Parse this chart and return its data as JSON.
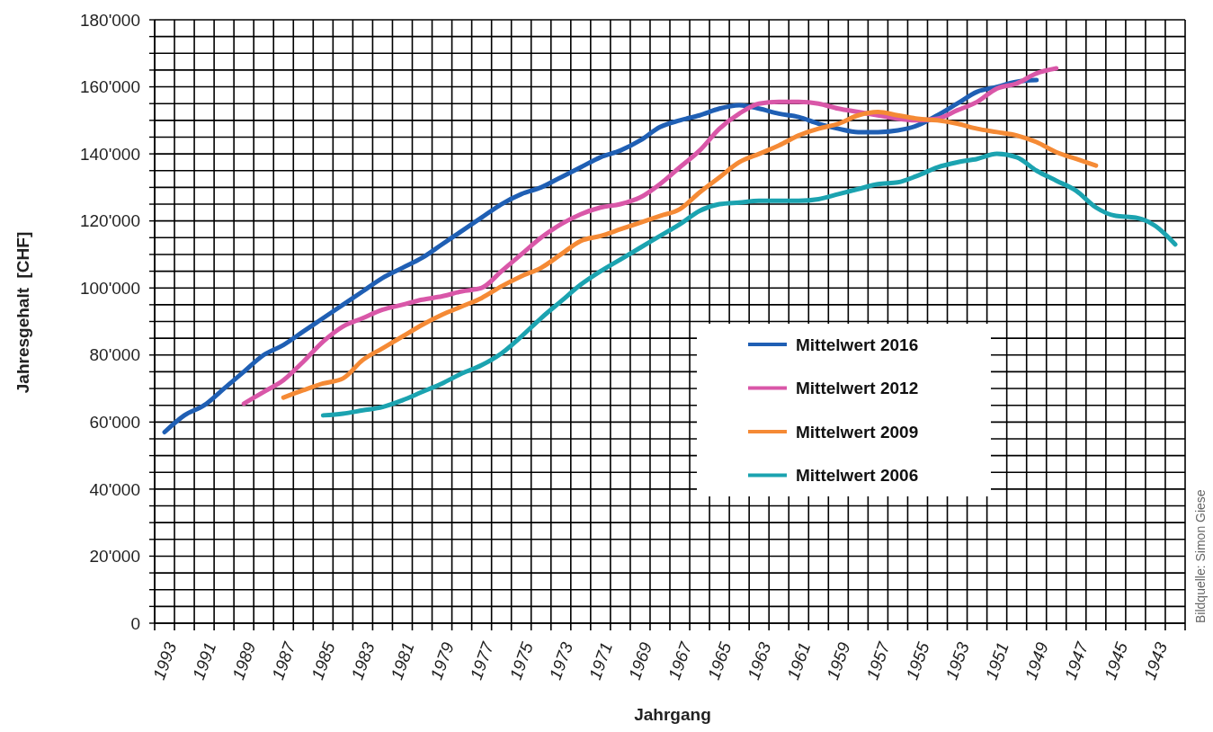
{
  "chart_data": {
    "type": "line",
    "xlabel": "Jahrgang",
    "ylabel": "Jahresgehalt  [CHF]",
    "annotations": [
      "Bildquelle: Simon Giese"
    ],
    "grid": true,
    "legend": "right",
    "line_style": "solid",
    "marker": "none",
    "categories": [
      "1993",
      null,
      "1991",
      null,
      "1989",
      null,
      "1987",
      null,
      "1985",
      null,
      "1983",
      null,
      "1981",
      null,
      "1979",
      null,
      "1977",
      null,
      "1975",
      null,
      "1973",
      null,
      "1971",
      null,
      "1969",
      null,
      "1967",
      null,
      "1965",
      null,
      "1963",
      null,
      "1961",
      null,
      "1959",
      null,
      "1957",
      null,
      "1955",
      null,
      "1953",
      null,
      "1951",
      null,
      "1949",
      null,
      "1947",
      null,
      "1945",
      null,
      "1943",
      null
    ],
    "ylim": [
      0,
      180000
    ],
    "yticks": [
      0,
      {
        "value": 5000,
        "label": null
      },
      {
        "value": 10000,
        "label": null
      },
      {
        "value": 15000,
        "label": null
      },
      {
        "value": 20000,
        "label": "20'000"
      },
      {
        "value": 25000,
        "label": null
      },
      {
        "value": 30000,
        "label": null
      },
      {
        "value": 35000,
        "label": null
      },
      {
        "value": 40000,
        "label": "40'000"
      },
      {
        "value": 45000,
        "label": null
      },
      {
        "value": 50000,
        "label": null
      },
      {
        "value": 55000,
        "label": null
      },
      {
        "value": 60000,
        "label": "60'000"
      },
      {
        "value": 65000,
        "label": null
      },
      {
        "value": 70000,
        "label": null
      },
      {
        "value": 75000,
        "label": null
      },
      {
        "value": 80000,
        "label": "80'000"
      },
      {
        "value": 85000,
        "label": null
      },
      {
        "value": 90000,
        "label": null
      },
      {
        "value": 95000,
        "label": null
      },
      {
        "value": 100000,
        "label": "100'000"
      },
      {
        "value": 105000,
        "label": null
      },
      {
        "value": 110000,
        "label": null
      },
      {
        "value": 115000,
        "label": null
      },
      {
        "value": 120000,
        "label": "120'000"
      },
      {
        "value": 125000,
        "label": null
      },
      {
        "value": 130000,
        "label": null
      },
      {
        "value": 135000,
        "label": null
      },
      {
        "value": 140000,
        "label": "140'000"
      },
      {
        "value": 145000,
        "label": null
      },
      {
        "value": 150000,
        "label": null
      },
      {
        "value": 155000,
        "label": null
      },
      {
        "value": 160000,
        "label": "160'000"
      },
      {
        "value": 165000,
        "label": null
      },
      {
        "value": 170000,
        "label": null
      },
      {
        "value": 175000,
        "label": null
      },
      {
        "value": 180000,
        "label": "180'000"
      }
    ],
    "series": [
      {
        "name": "Mittelwert 2016",
        "color": "#1f5fb4",
        "values": [
          57000,
          62000,
          65000,
          70000,
          75000,
          80000,
          83000,
          87000,
          91000,
          95000,
          99000,
          103000,
          106000,
          109000,
          113000,
          117000,
          121000,
          125000,
          128000,
          130000,
          133000,
          136000,
          139000,
          141000,
          144000,
          148000,
          150000,
          151500,
          153500,
          154500,
          153500,
          152000,
          151000,
          149000,
          147500,
          146500,
          146500,
          147000,
          148500,
          151500,
          155000,
          158500,
          160000,
          161500,
          162000,
          null,
          null,
          null,
          null,
          null,
          null,
          null
        ]
      },
      {
        "name": "Mittelwert 2012",
        "color": "#d957a8",
        "values": [
          null,
          null,
          null,
          null,
          65500,
          69000,
          72500,
          78000,
          84000,
          88500,
          91000,
          93500,
          95000,
          96500,
          97500,
          99000,
          100000,
          105000,
          110000,
          115000,
          119000,
          122000,
          124000,
          125000,
          127000,
          131000,
          136000,
          141000,
          147500,
          152000,
          155000,
          155500,
          155500,
          155000,
          153500,
          152500,
          151500,
          150500,
          150000,
          150500,
          153000,
          155500,
          159500,
          161000,
          164000,
          165500,
          null,
          null,
          null,
          null,
          null,
          null
        ]
      },
      {
        "name": "Mittelwert 2009",
        "color": "#f58a35",
        "values": [
          null,
          null,
          null,
          null,
          null,
          null,
          67300,
          69500,
          71500,
          73000,
          78500,
          82000,
          85500,
          89000,
          92000,
          94500,
          97000,
          100500,
          103500,
          106000,
          110000,
          114000,
          115500,
          117500,
          119500,
          121500,
          123500,
          128500,
          133000,
          137500,
          140000,
          142500,
          145500,
          147500,
          149000,
          151500,
          152500,
          151500,
          150500,
          150000,
          149000,
          147500,
          146500,
          145500,
          143500,
          140500,
          138500,
          136500,
          null,
          null,
          null,
          null
        ]
      },
      {
        "name": "Mittelwert 2006",
        "color": "#1ba3b0",
        "values": [
          null,
          null,
          null,
          null,
          null,
          null,
          null,
          null,
          62000,
          62500,
          63500,
          64500,
          66500,
          69000,
          71500,
          74500,
          77000,
          80500,
          85500,
          91000,
          96000,
          101000,
          105000,
          108500,
          112000,
          115500,
          119000,
          123000,
          125000,
          125500,
          126000,
          126000,
          126000,
          126500,
          128000,
          129500,
          131000,
          131500,
          133500,
          136000,
          137500,
          138500,
          140000,
          139000,
          135000,
          132000,
          129000,
          124000,
          121500,
          121000,
          118500,
          113000
        ]
      }
    ]
  }
}
